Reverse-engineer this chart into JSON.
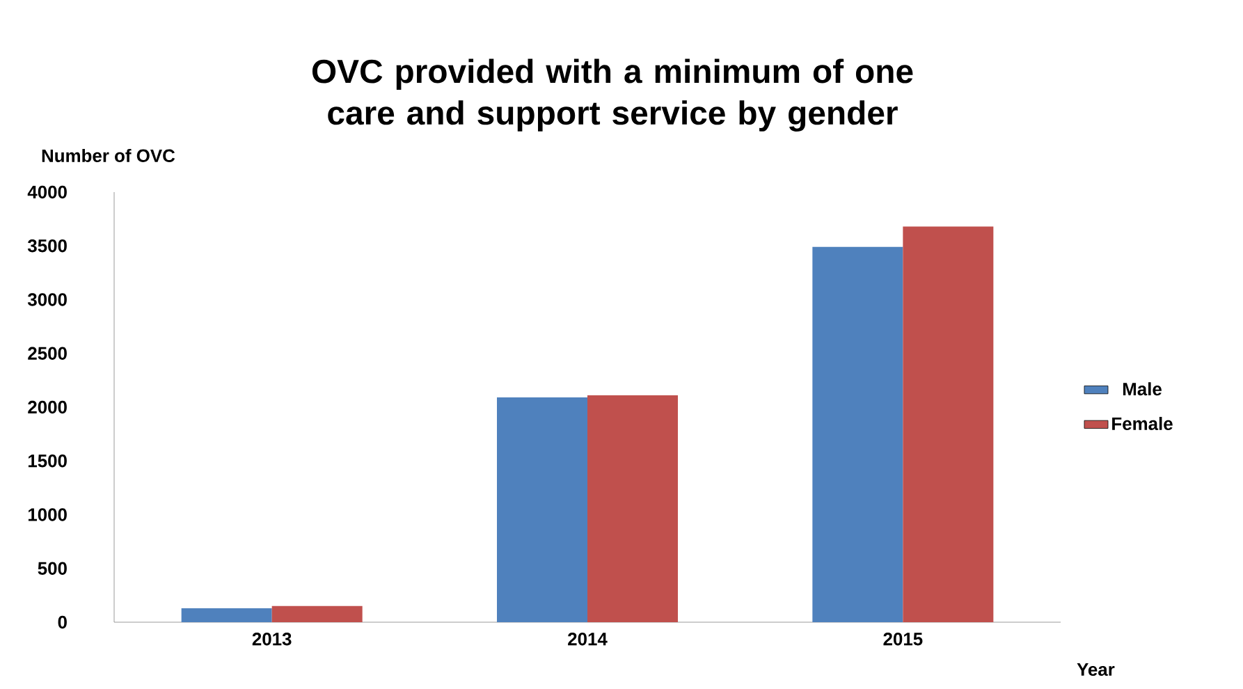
{
  "chart_data": {
    "type": "bar",
    "title": "OVC provided with a minimum of one care and support service by gender",
    "xlabel": "Year",
    "ylabel": "Number of OVC",
    "categories": [
      "2013",
      "2014",
      "2015"
    ],
    "series": [
      {
        "name": "Male",
        "color": "#4f81bd",
        "values": [
          130,
          2090,
          3490
        ]
      },
      {
        "name": "Female",
        "color": "#c0504d",
        "values": [
          150,
          2110,
          3680
        ]
      }
    ],
    "ylim": [
      0,
      4000
    ],
    "yticks": [
      0,
      500,
      1000,
      1500,
      2000,
      2500,
      3000,
      3500,
      4000
    ],
    "grid": false,
    "legend": "right"
  }
}
